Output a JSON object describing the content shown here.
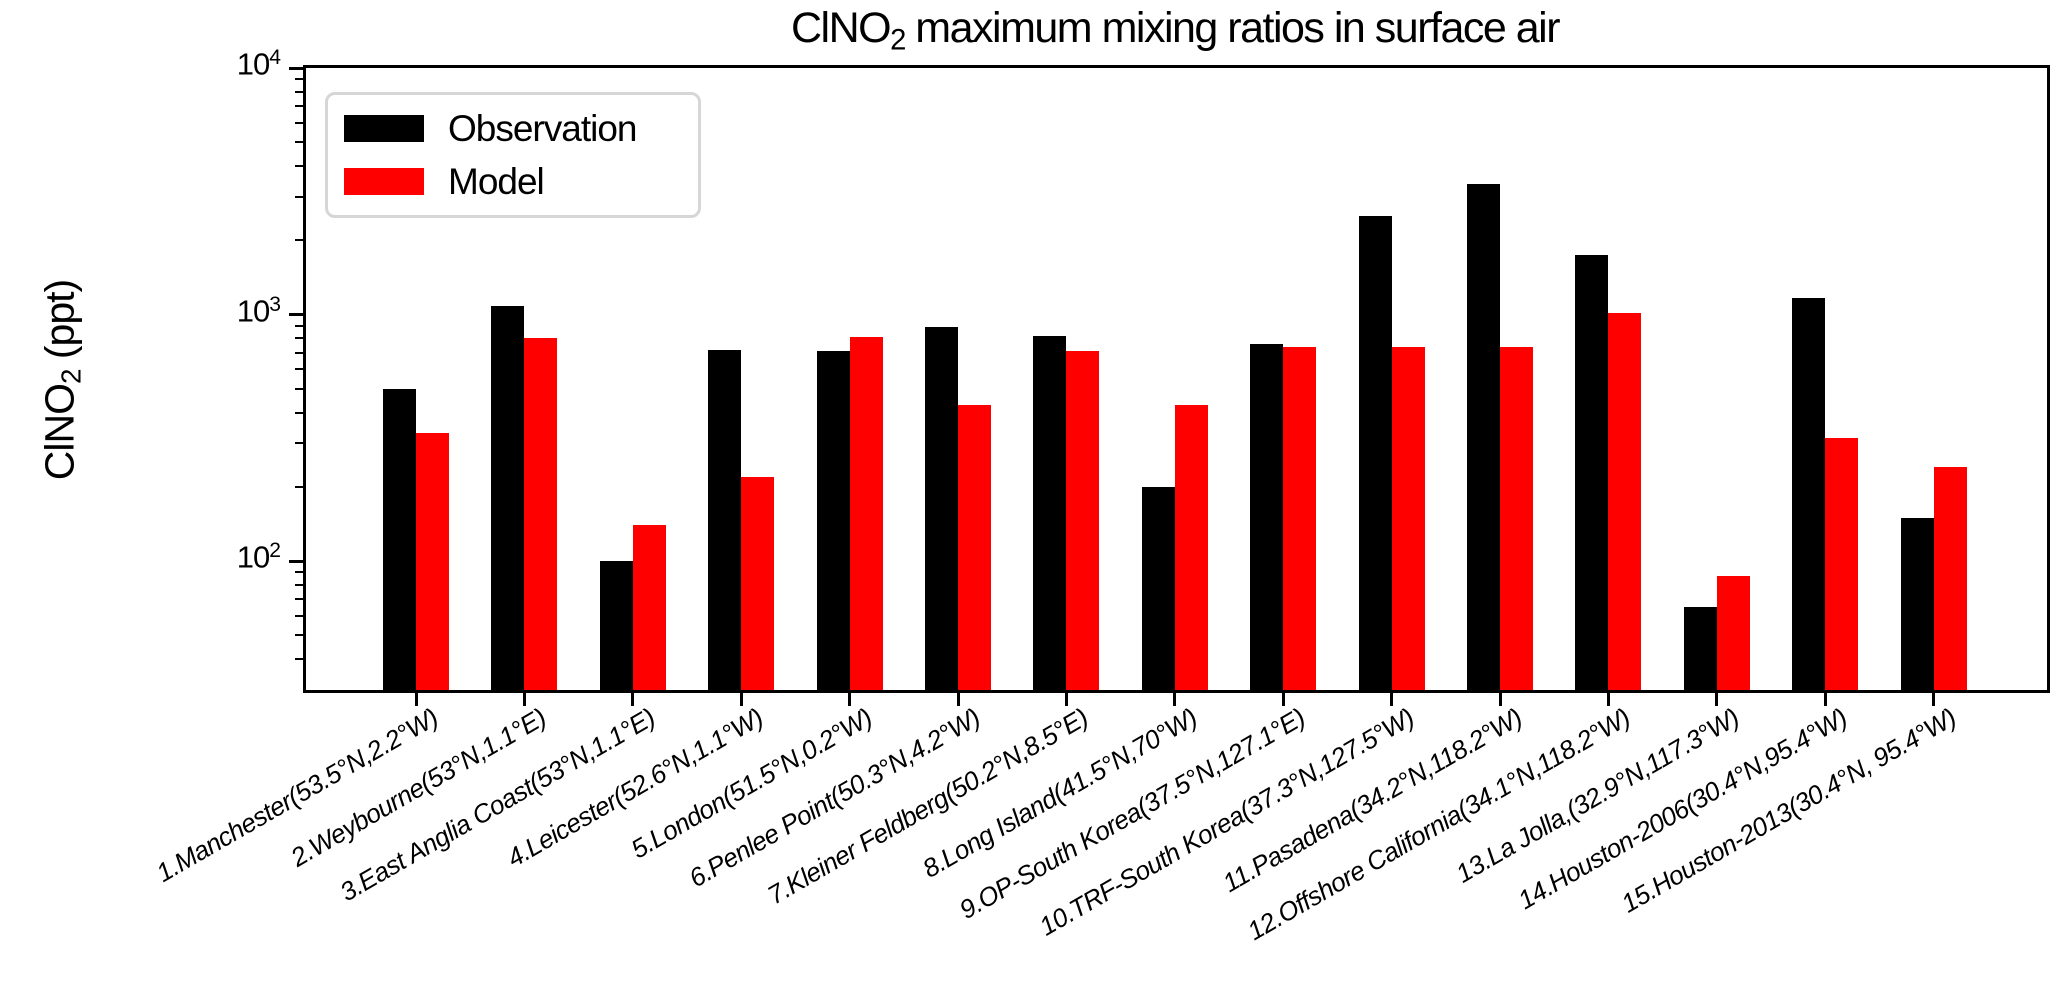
{
  "figure": {
    "title": {
      "prefix": "ClNO",
      "sub": "2",
      "rest": " maximum mixing ratios in surface air"
    },
    "ylabel": {
      "prefix": "ClNO",
      "sub": "2",
      "rest": " (ppt)"
    },
    "background": "#ffffff",
    "axis_color": "#000000"
  },
  "legend": {
    "items": [
      {
        "label": "Observation",
        "color": "#000000"
      },
      {
        "label": "Model",
        "color": "#ff0000"
      }
    ]
  },
  "chart_data": {
    "type": "bar",
    "title": "ClNO2 maximum mixing ratios in surface air",
    "xlabel": "",
    "ylabel": "ClNO2 (ppt)",
    "yscale": "log",
    "ylim": [
      30,
      10000
    ],
    "grid": false,
    "legend_position": "upper left",
    "y_major_ticks": [
      100,
      1000,
      10000
    ],
    "y_tick_labels": [
      {
        "base": "10",
        "exp": "2"
      },
      {
        "base": "10",
        "exp": "3"
      },
      {
        "base": "10",
        "exp": "4"
      }
    ],
    "categories": [
      "1.Manchester(53.5°N,2.2°W)",
      "2.Weybourne(53°N,1.1°E)",
      "3.East Anglia Coast(53°N,1.1°E)",
      "4.Leicester(52.6°N,1.1°W)",
      "5.London(51.5°N,0.2°W)",
      "6.Penlee Point(50.3°N,4.2°W)",
      "7.Kleiner Feldberg(50.2°N,8.5°E)",
      "8.Long Island(41.5°N,70°W)",
      "9.OP-South Korea(37.5°N,127.1°E)",
      "10.TRF-South Korea(37.3°N,127.5°W)",
      "11.Pasadena(34.2°N,118.2°W)",
      "12.Offshore California(34.1°N,118.2°W)",
      "13.La Jolla,(32.9°N,117.3°W)",
      "14.Houston-2006(30.4°N,95.4°W)",
      "15.Houston-2013(30.4°N, 95.4°W)"
    ],
    "series": [
      {
        "name": "Observation",
        "color": "#000000",
        "values": [
          500,
          1080,
          100,
          720,
          710,
          890,
          820,
          200,
          760,
          2500,
          3400,
          1740,
          65,
          1170,
          150
        ]
      },
      {
        "name": "Model",
        "color": "#ff0000",
        "values": [
          330,
          800,
          140,
          220,
          810,
          430,
          710,
          430,
          740,
          740,
          740,
          1010,
          87,
          315,
          240
        ]
      }
    ]
  }
}
